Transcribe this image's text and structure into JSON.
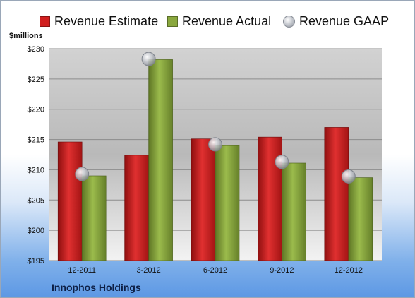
{
  "chart_data": {
    "type": "bar",
    "ylabel": "$millions",
    "ylim": [
      195,
      230
    ],
    "ytick_step": 5,
    "ytick_prefix": "$",
    "grid": true,
    "legend_position": "top",
    "categories": [
      "12-2011",
      "3-2012",
      "6-2012",
      "9-2012",
      "12-2012"
    ],
    "series": [
      {
        "name": "Revenue Estimate",
        "kind": "bar",
        "color": "#d11f1f",
        "values": [
          214.6,
          212.4,
          215.1,
          215.4,
          217.0
        ]
      },
      {
        "name": "Revenue Actual",
        "kind": "bar",
        "color": "#8aa83e",
        "values": [
          209.0,
          228.2,
          214.0,
          211.1,
          208.7
        ]
      },
      {
        "name": "Revenue GAAP",
        "kind": "marker",
        "color": "#b8bcc4",
        "values": [
          209.3,
          228.3,
          214.2,
          211.3,
          208.9
        ]
      }
    ],
    "footer_label": "Innophos Holdings"
  }
}
